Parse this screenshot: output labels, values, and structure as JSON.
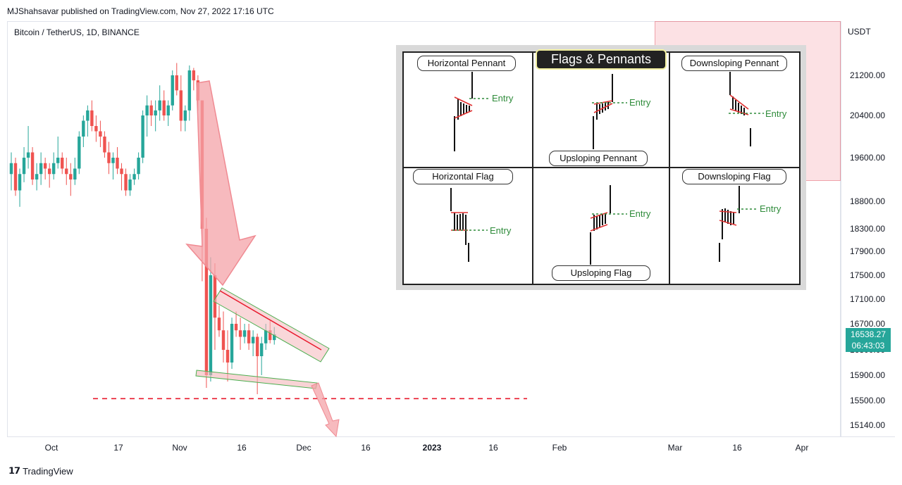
{
  "header": {
    "published": "MJShahsavar published on TradingView.com, Nov 27, 2022 17:16 UTC",
    "symbol": "Bitcoin / TetherUS, 1D, BINANCE"
  },
  "footer": {
    "brand": "TradingView",
    "logo_icon": "tradingview-logo-icon"
  },
  "colors": {
    "up": "#26a69a",
    "down": "#ef5350",
    "support_line": "#e8192c",
    "pattern_fill": "#f4a3a8",
    "zone": "#f7c9cd"
  },
  "price_label": {
    "price": "16538.27",
    "countdown": "06:43:03"
  },
  "cheatsheet": {
    "title": "Flags & Pennants",
    "cells": [
      {
        "label": "Horizontal Pennant",
        "entry": "Entry"
      },
      {
        "label": "Upsloping Pennant",
        "entry": "Entry"
      },
      {
        "label": "Downsloping Pennant",
        "entry": "Entry"
      },
      {
        "label": "Horizontal Flag",
        "entry": "Entry"
      },
      {
        "label": "Upsloping Flag",
        "entry": "Entry"
      },
      {
        "label": "Downsloping Flag",
        "entry": "Entry"
      }
    ]
  },
  "chart_data": {
    "type": "candlestick",
    "title": "Bitcoin / TetherUS, 1D, BINANCE",
    "y_unit": "USDT",
    "y_ticks": [
      "15140.00",
      "15500.00",
      "15900.00",
      "16300.00",
      "16700.00",
      "17100.00",
      "17500.00",
      "17900.00",
      "18300.00",
      "18800.00",
      "19600.00",
      "20400.00",
      "21200.00"
    ],
    "x_ticks": [
      {
        "label": "Oct",
        "bold": false
      },
      {
        "label": "17",
        "bold": false
      },
      {
        "label": "Nov",
        "bold": false
      },
      {
        "label": "16",
        "bold": false
      },
      {
        "label": "Dec",
        "bold": false
      },
      {
        "label": "16",
        "bold": false
      },
      {
        "label": "2023",
        "bold": true
      },
      {
        "label": "16",
        "bold": false
      },
      {
        "label": "Feb",
        "bold": false
      },
      {
        "label": "Mar",
        "bold": false
      },
      {
        "label": "16",
        "bold": false
      },
      {
        "label": "Apr",
        "bold": false
      }
    ],
    "support_level": 15530,
    "last_price": 16538.27,
    "candles": [
      [
        19300,
        19700,
        19000,
        19500
      ],
      [
        19500,
        19600,
        18900,
        19000
      ],
      [
        19000,
        19400,
        18700,
        19300
      ],
      [
        19300,
        19800,
        19150,
        19600
      ],
      [
        19600,
        20200,
        19400,
        19700
      ],
      [
        19700,
        19800,
        19100,
        19200
      ],
      [
        19200,
        19500,
        19000,
        19300
      ],
      [
        19300,
        19700,
        19100,
        19500
      ],
      [
        19500,
        19600,
        19200,
        19400
      ],
      [
        19400,
        19500,
        19050,
        19300
      ],
      [
        19300,
        19700,
        19200,
        19500
      ],
      [
        19500,
        20000,
        19400,
        19600
      ],
      [
        19600,
        19700,
        19300,
        19400
      ],
      [
        19400,
        19600,
        19100,
        19300
      ],
      [
        19300,
        19500,
        18900,
        19200
      ],
      [
        19200,
        19600,
        19100,
        19400
      ],
      [
        19400,
        20100,
        19300,
        20000
      ],
      [
        20000,
        20400,
        19800,
        20300
      ],
      [
        20300,
        20600,
        20000,
        20500
      ],
      [
        20500,
        20700,
        20100,
        20200
      ],
      [
        20200,
        20400,
        19900,
        20100
      ],
      [
        20100,
        20300,
        19800,
        20000
      ],
      [
        20000,
        20100,
        19600,
        19700
      ],
      [
        19700,
        19900,
        19300,
        19500
      ],
      [
        19500,
        19700,
        19200,
        19600
      ],
      [
        19600,
        19800,
        19300,
        19400
      ],
      [
        19400,
        19500,
        19000,
        19300
      ],
      [
        19300,
        19400,
        18900,
        19000
      ],
      [
        19000,
        19300,
        18900,
        19200
      ],
      [
        19200,
        19400,
        19100,
        19300
      ],
      [
        19300,
        19700,
        19200,
        19600
      ],
      [
        19600,
        20500,
        19500,
        20400
      ],
      [
        20400,
        20800,
        20000,
        20600
      ],
      [
        20600,
        20700,
        20200,
        20400
      ],
      [
        20400,
        20700,
        20100,
        20500
      ],
      [
        20500,
        21000,
        20300,
        20700
      ],
      [
        20700,
        20900,
        20300,
        20400
      ],
      [
        20400,
        20700,
        20200,
        20600
      ],
      [
        20600,
        21300,
        20500,
        21200
      ],
      [
        21200,
        21450,
        20800,
        20900
      ],
      [
        20900,
        21200,
        20100,
        20300
      ],
      [
        20300,
        20600,
        20100,
        20500
      ],
      [
        20500,
        21400,
        20300,
        21300
      ],
      [
        21300,
        21350,
        20900,
        21100
      ],
      [
        21100,
        21200,
        20500,
        20700
      ],
      [
        20700,
        20700,
        17400,
        18300
      ],
      [
        18300,
        18500,
        15700,
        15900
      ],
      [
        15900,
        17800,
        15800,
        17500
      ],
      [
        17500,
        17700,
        16300,
        16800
      ],
      [
        16800,
        17000,
        16500,
        16600
      ],
      [
        16600,
        16900,
        16100,
        16300
      ],
      [
        16300,
        16600,
        15800,
        16100
      ],
      [
        16100,
        16800,
        16000,
        16700
      ],
      [
        16700,
        16900,
        16500,
        16600
      ],
      [
        16600,
        16800,
        16300,
        16500
      ],
      [
        16500,
        16700,
        16400,
        16600
      ],
      [
        16600,
        16700,
        16300,
        16400
      ],
      [
        16400,
        16600,
        16200,
        16500
      ],
      [
        16500,
        16550,
        15600,
        16200
      ],
      [
        16200,
        16500,
        15900,
        16400
      ],
      [
        16400,
        16700,
        16300,
        16600
      ],
      [
        16600,
        16750,
        16400,
        16450
      ],
      [
        16450,
        16650,
        16380,
        16538
      ]
    ]
  }
}
